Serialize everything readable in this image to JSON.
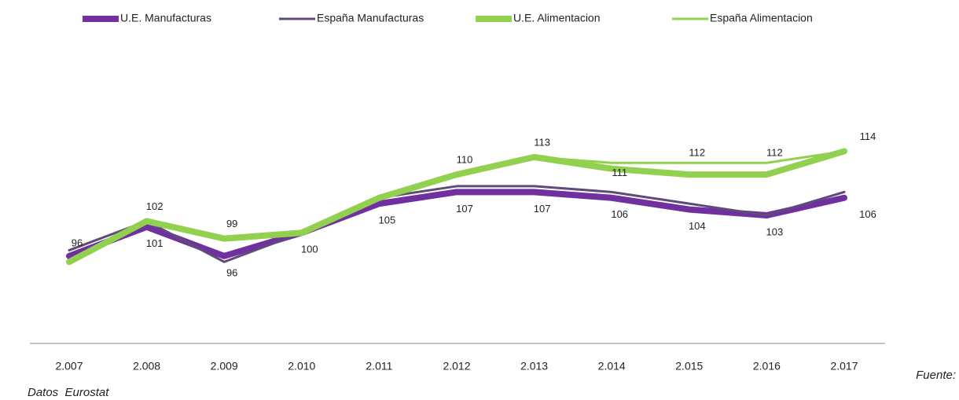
{
  "chart_data": {
    "type": "line",
    "categories": [
      "2.007",
      "2.008",
      "2.009",
      "2.010",
      "2.011",
      "2.012",
      "2.013",
      "2.014",
      "2.015",
      "2.016",
      "2.017"
    ],
    "ylim": [
      81,
      120
    ],
    "series": [
      {
        "name": "U.E. Manufacturas",
        "color": "#7030a0",
        "width": 8,
        "values": [
          96,
          101,
          96,
          100,
          105,
          107,
          107,
          106,
          104,
          103,
          106
        ],
        "value_labels": [
          "96",
          "101",
          "96",
          "100",
          "105",
          "107",
          "107",
          "106",
          "104",
          "103",
          "106"
        ]
      },
      {
        "name": "España Manufacturas",
        "color": "#5f4b7b",
        "width": 3,
        "values": [
          97,
          102,
          95,
          100,
          106,
          108,
          108,
          107,
          105,
          103,
          107
        ]
      },
      {
        "name": "U.E. Alimentacion",
        "color": "#92d050",
        "width": 8,
        "values": [
          95,
          102,
          99,
          100,
          106,
          110,
          113,
          111,
          110,
          110,
          114
        ],
        "value_labels": [
          null,
          "102",
          "99",
          null,
          null,
          "110",
          "113",
          "111",
          null,
          null,
          "114"
        ]
      },
      {
        "name": "España Alimentacion",
        "color": "#92d050",
        "width": 3,
        "values": [
          95,
          102,
          99,
          100,
          106,
          110,
          113,
          112,
          112,
          112,
          114
        ],
        "value_labels": [
          null,
          null,
          null,
          null,
          null,
          null,
          null,
          null,
          "112",
          "112",
          null
        ]
      }
    ],
    "source": [
      "Fuente:",
      "Datos  Eurostat"
    ]
  }
}
